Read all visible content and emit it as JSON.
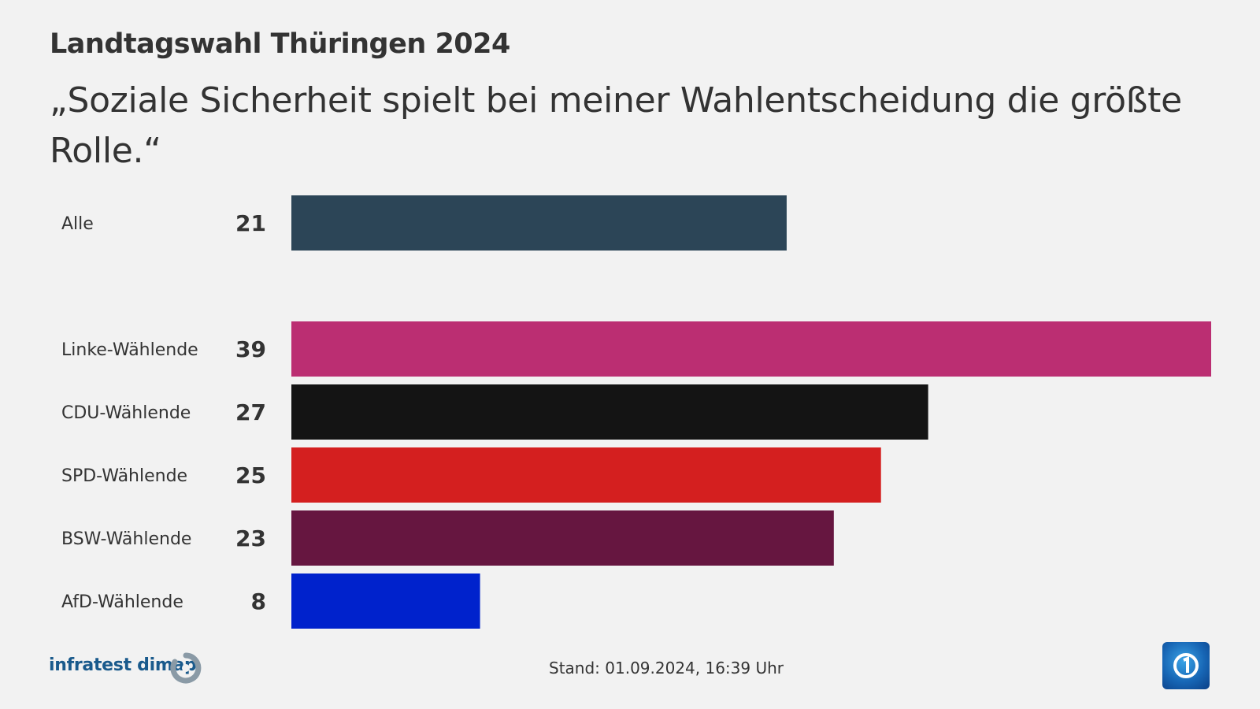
{
  "header": {
    "title": "Landtagswahl Thüringen 2024",
    "subtitle": "„Soziale Sicherheit spielt bei meiner Wahlentscheidung die größte Rolle.“"
  },
  "footer": {
    "brand": "infratest dimap",
    "stand": "Stand:  01.09.2024, 16:39 Uhr"
  },
  "chart_data": {
    "type": "bar",
    "orientation": "horizontal",
    "categories": [
      "Alle",
      "Linke-Wählende",
      "CDU-Wählende",
      "SPD-Wählende",
      "BSW-Wählende",
      "AfD-Wählende"
    ],
    "values": [
      21,
      39,
      27,
      25,
      23,
      8
    ],
    "labels": [
      "21",
      "39",
      "27",
      "25",
      "23",
      "8"
    ],
    "colors": [
      "#2c4557",
      "#bb2e72",
      "#141414",
      "#d41f1f",
      "#661640",
      "#0022cc"
    ],
    "xlim": [
      0,
      39
    ],
    "grid": false,
    "legend": "none"
  }
}
